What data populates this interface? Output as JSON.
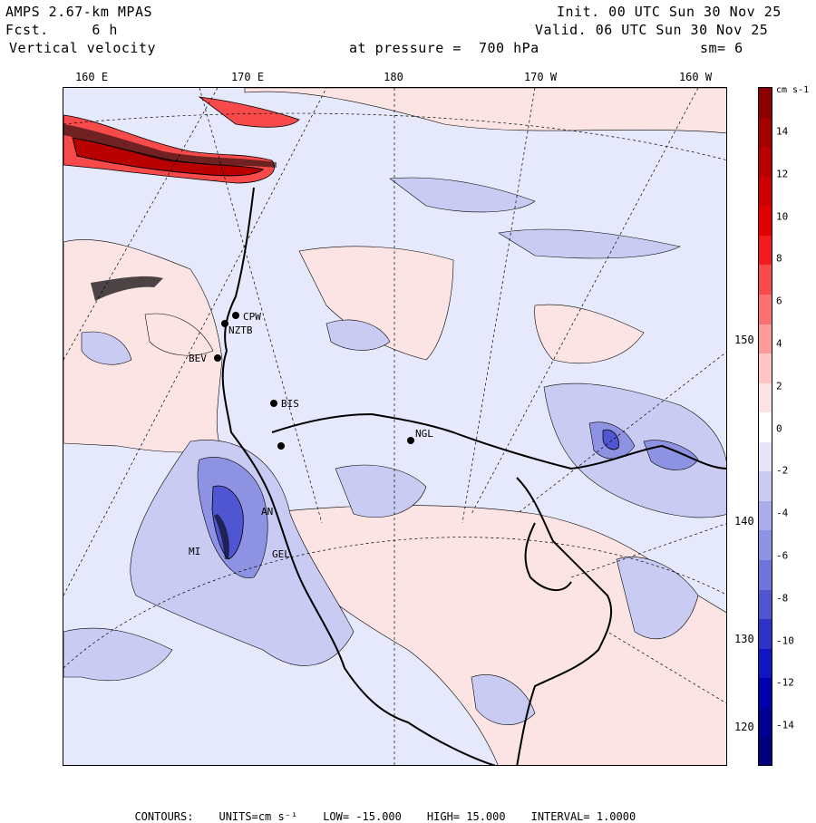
{
  "header": {
    "model": "AMPS 2.67-km MPAS",
    "forecast_label": "Fcst.",
    "forecast_value": "6 h",
    "field": "Vertical velocity",
    "init": "Init. 00 UTC Sun 30 Nov 25",
    "valid": "Valid. 06 UTC Sun 30 Nov 25",
    "level_label": "at pressure =",
    "level_value": "700 hPa",
    "smoothing": "sm= 6"
  },
  "longitude_labels": [
    "160 E",
    "170 E",
    "180",
    "170 W",
    "160 W"
  ],
  "latitude_labels": [
    "150 W",
    "140 W",
    "130 W",
    "120 W"
  ],
  "stations": [
    "CPW",
    "NZTB",
    "BEV",
    "BIS",
    "NGL",
    "AN",
    "GEL",
    "MI"
  ],
  "colorbar": {
    "units": "cm s-1",
    "ticks": [
      "14",
      "12",
      "10",
      "8",
      "6",
      "4",
      "2",
      "0",
      "-2",
      "-4",
      "-6",
      "-8",
      "-10",
      "-12",
      "-14"
    ],
    "colors": [
      "#8b0000",
      "#a30000",
      "#b80000",
      "#cc0000",
      "#e00000",
      "#f21c1c",
      "#f84a4a",
      "#fb7070",
      "#fd9a9a",
      "#ffc4c4",
      "#fde4e4",
      "#ffffff",
      "#e6e6f8",
      "#c9cbf2",
      "#a9adea",
      "#8e92e2",
      "#6f74da",
      "#5056d1",
      "#2e33c8",
      "#1015bf",
      "#0000ad",
      "#000095",
      "#00007e"
    ]
  },
  "footer": {
    "contours": "CONTOURS:",
    "units": "UNITS=cm s⁻¹",
    "low": "LOW= -15.000",
    "high": "HIGH= 15.000",
    "interval": "INTERVAL= 1.0000"
  },
  "colors": {
    "background_field": "#e6e9fb",
    "positive_light": "#fde4e4",
    "negative_light": "#c9cbf2",
    "negative_strong": "#5056d1",
    "positive_strong": "#cc0000"
  }
}
